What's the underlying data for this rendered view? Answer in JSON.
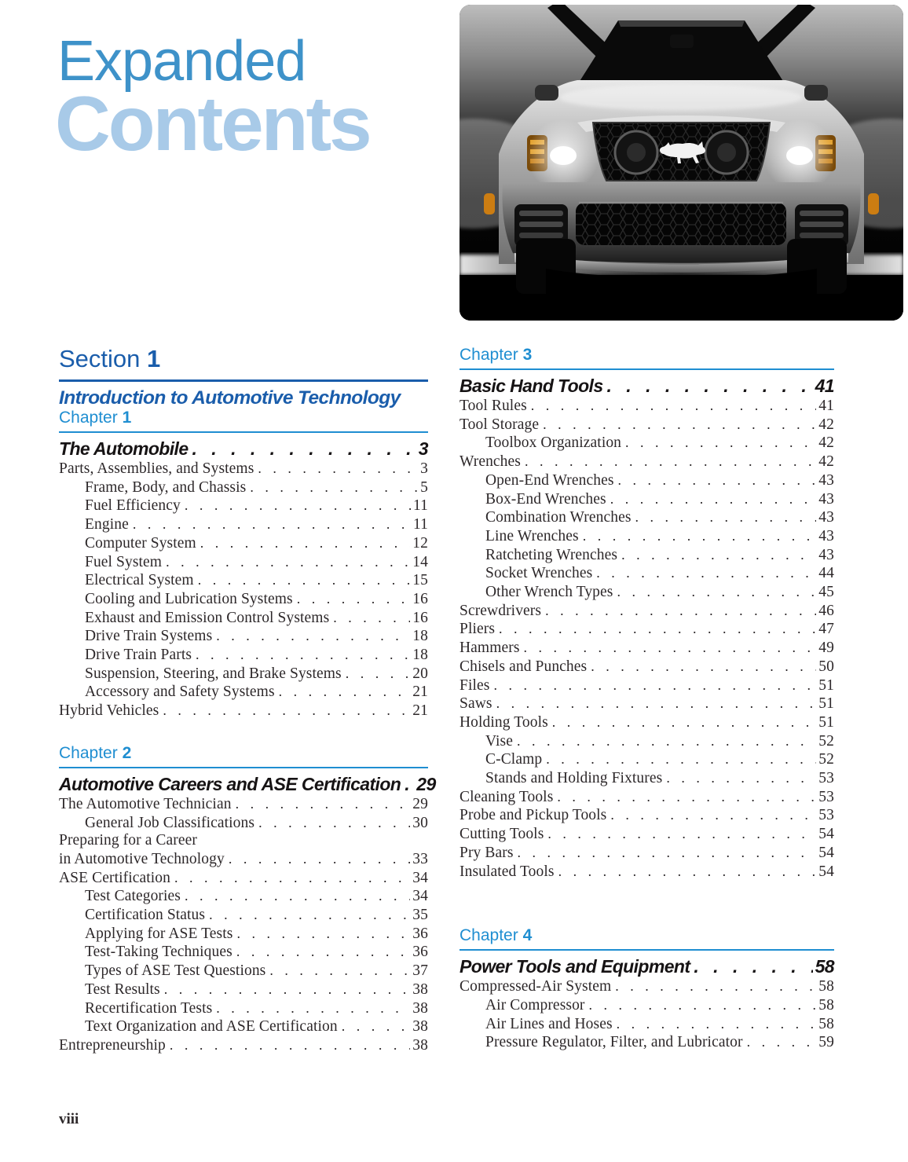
{
  "header": {
    "title_line1": "Expanded",
    "title_line2": "Contents"
  },
  "hero": {
    "alt": "Front view of a silver Ford Mustang convertible in a dark studio, headlights on",
    "emblem": "mustang-pony"
  },
  "colors": {
    "title_mid_blue": "#3e92c9",
    "title_light_blue": "#a8cae8",
    "section_blue": "#1a5dab",
    "chapter_blue": "#1f8ed1",
    "body_text": "#2d282a"
  },
  "left_column": {
    "section": {
      "label": "Section",
      "number": "1",
      "subtitle": "Introduction to Automotive Technology"
    },
    "chapters": [
      {
        "label": "Chapter",
        "number": "1",
        "title": "The Automobile",
        "page": "3",
        "entries": [
          {
            "t": "Parts, Assemblies, and Systems",
            "p": "3",
            "i": 0
          },
          {
            "t": "Frame, Body, and Chassis",
            "p": "5",
            "i": 1
          },
          {
            "t": "Fuel Efficiency",
            "p": "11",
            "i": 1
          },
          {
            "t": "Engine",
            "p": "11",
            "i": 1
          },
          {
            "t": "Computer System",
            "p": "12",
            "i": 1
          },
          {
            "t": "Fuel System",
            "p": "14",
            "i": 1
          },
          {
            "t": "Electrical System",
            "p": "15",
            "i": 1
          },
          {
            "t": "Cooling and Lubrication Systems",
            "p": "16",
            "i": 1
          },
          {
            "t": "Exhaust and Emission Control Systems",
            "p": "16",
            "i": 1
          },
          {
            "t": "Drive Train Systems",
            "p": "18",
            "i": 1
          },
          {
            "t": "Drive Train Parts",
            "p": "18",
            "i": 1
          },
          {
            "t": "Suspension, Steering, and Brake Systems",
            "p": "20",
            "i": 1
          },
          {
            "t": "Accessory and Safety Systems",
            "p": "21",
            "i": 1
          },
          {
            "t": "Hybrid Vehicles",
            "p": "21",
            "i": 0
          }
        ]
      },
      {
        "label": "Chapter",
        "number": "2",
        "title": "Automotive Careers and ASE Certification",
        "page": "29",
        "entries": [
          {
            "t": "The Automotive Technician",
            "p": "29",
            "i": 0
          },
          {
            "t": "General Job Classifications",
            "p": "30",
            "i": 1
          },
          {
            "t": "Preparing for a Career",
            "p": null,
            "i": 0
          },
          {
            "t": "in Automotive Technology",
            "p": "33",
            "i": 0
          },
          {
            "t": "ASE Certification",
            "p": "34",
            "i": 0
          },
          {
            "t": "Test Categories",
            "p": "34",
            "i": 1
          },
          {
            "t": "Certification Status",
            "p": "35",
            "i": 1
          },
          {
            "t": "Applying for ASE Tests",
            "p": "36",
            "i": 1
          },
          {
            "t": "Test-Taking Techniques",
            "p": "36",
            "i": 1
          },
          {
            "t": "Types of ASE Test Questions",
            "p": "37",
            "i": 1
          },
          {
            "t": "Test Results",
            "p": "38",
            "i": 1
          },
          {
            "t": "Recertification Tests",
            "p": "38",
            "i": 1
          },
          {
            "t": "Text Organization and ASE Certification",
            "p": "38",
            "i": 1
          },
          {
            "t": "Entrepreneurship",
            "p": "38",
            "i": 0
          }
        ]
      }
    ]
  },
  "right_column": {
    "chapters": [
      {
        "label": "Chapter",
        "number": "3",
        "title": "Basic Hand Tools",
        "page": "41",
        "entries": [
          {
            "t": "Tool Rules",
            "p": "41",
            "i": 0
          },
          {
            "t": "Tool Storage",
            "p": "42",
            "i": 0
          },
          {
            "t": "Toolbox Organization",
            "p": "42",
            "i": 1
          },
          {
            "t": "Wrenches",
            "p": "42",
            "i": 0
          },
          {
            "t": "Open-End Wrenches",
            "p": "43",
            "i": 1
          },
          {
            "t": "Box-End Wrenches",
            "p": "43",
            "i": 1
          },
          {
            "t": "Combination Wrenches",
            "p": "43",
            "i": 1
          },
          {
            "t": "Line Wrenches",
            "p": "43",
            "i": 1
          },
          {
            "t": "Ratcheting Wrenches",
            "p": "43",
            "i": 1
          },
          {
            "t": "Socket Wrenches",
            "p": "44",
            "i": 1
          },
          {
            "t": "Other Wrench Types",
            "p": "45",
            "i": 1
          },
          {
            "t": "Screwdrivers",
            "p": "46",
            "i": 0
          },
          {
            "t": "Pliers",
            "p": "47",
            "i": 0
          },
          {
            "t": "Hammers",
            "p": "49",
            "i": 0
          },
          {
            "t": "Chisels and Punches",
            "p": "50",
            "i": 0
          },
          {
            "t": "Files",
            "p": "51",
            "i": 0
          },
          {
            "t": "Saws",
            "p": "51",
            "i": 0
          },
          {
            "t": "Holding Tools",
            "p": "51",
            "i": 0
          },
          {
            "t": "Vise",
            "p": "52",
            "i": 1
          },
          {
            "t": "C-Clamp",
            "p": "52",
            "i": 1
          },
          {
            "t": "Stands and Holding Fixtures",
            "p": "53",
            "i": 1
          },
          {
            "t": "Cleaning Tools",
            "p": "53",
            "i": 0
          },
          {
            "t": "Probe and Pickup Tools",
            "p": "53",
            "i": 0
          },
          {
            "t": "Cutting Tools",
            "p": "54",
            "i": 0
          },
          {
            "t": "Pry Bars",
            "p": "54",
            "i": 0
          },
          {
            "t": "Insulated Tools",
            "p": "54",
            "i": 0
          }
        ]
      },
      {
        "label": "Chapter",
        "number": "4",
        "title": "Power Tools and Equipment",
        "page": "58",
        "entries": [
          {
            "t": "Compressed-Air System",
            "p": "58",
            "i": 0
          },
          {
            "t": "Air Compressor",
            "p": "58",
            "i": 1
          },
          {
            "t": "Air Lines and Hoses",
            "p": "58",
            "i": 1
          },
          {
            "t": "Pressure Regulator, Filter, and Lubricator",
            "p": "59",
            "i": 1
          }
        ]
      }
    ]
  },
  "footer": {
    "page_number": "viii"
  }
}
